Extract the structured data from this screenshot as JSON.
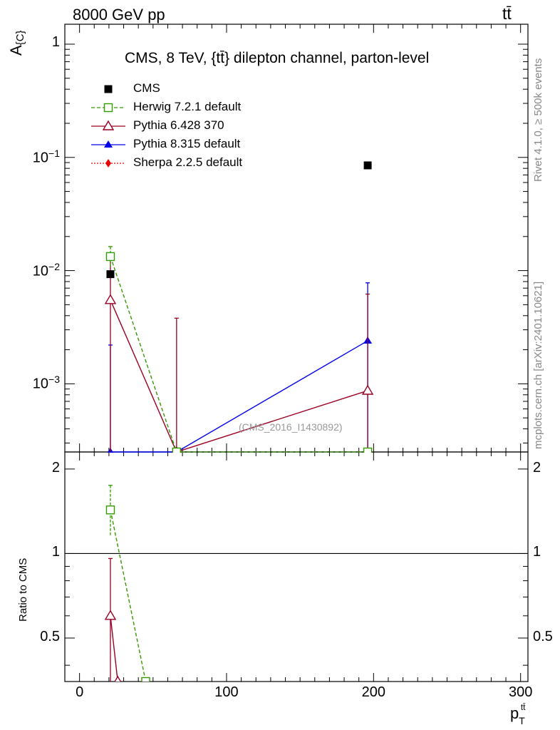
{
  "header": {
    "left": "8000 GeV pp",
    "right": "tt̄"
  },
  "side": {
    "rivet": "Rivet 4.1.0, ≥ 500k events",
    "mcplots": "mcplots.cern.ch [arXiv:2401.10621]"
  },
  "chart_data": {
    "type": "scatter",
    "title": "CMS, 8 TeV, {tt̄} dilepton channel, parton-level",
    "watermark": "(CMS_2016_I1430892)",
    "ylabel": "A_{C}",
    "xlabel": "p_T^{tt̄}",
    "xlim": [
      -10,
      305
    ],
    "ylim": [
      0.00025,
      1.5
    ],
    "yscale": "log",
    "xticks": [
      0,
      100,
      200,
      300
    ],
    "yticks": [
      {
        "value": 1,
        "label": "1"
      },
      {
        "value": 0.1,
        "label": "10^-1"
      },
      {
        "value": 0.01,
        "label": "10^-2"
      },
      {
        "value": 0.001,
        "label": "10^-3"
      }
    ],
    "legend_position": "top-left",
    "series": [
      {
        "name": "CMS",
        "color": "#000000",
        "marker": "square-filled",
        "line": "none",
        "points": [
          {
            "x": 21,
            "y": 0.0093
          },
          {
            "x": 66,
            "y": null
          },
          {
            "x": 196,
            "y": 0.085
          }
        ]
      },
      {
        "name": "Herwig 7.2.1 default",
        "color": "#339900",
        "marker": "square-open",
        "line": "dashed",
        "points": [
          {
            "x": 21,
            "y": 0.0133,
            "lo": 0.0108,
            "hi": 0.0163
          },
          {
            "x": 66,
            "y": 0.00025
          },
          {
            "x": 196,
            "y": 0.00025
          }
        ]
      },
      {
        "name": "Pythia 6.428 370",
        "color": "#990022",
        "marker": "triangle-open",
        "line": "solid",
        "points": [
          {
            "x": 21,
            "y": 0.0055,
            "lo": 0.00025,
            "hi": 0.0125
          },
          {
            "x": 66,
            "y": 0.00025,
            "hi": 0.0038
          },
          {
            "x": 196,
            "y": 0.00087,
            "lo": 0.00025,
            "hi": 0.0062
          }
        ]
      },
      {
        "name": "Pythia 8.315 default",
        "color": "#0000ee",
        "marker": "triangle-filled",
        "line": "solid",
        "points": [
          {
            "x": 21,
            "y": 0.00025,
            "hi": 0.0022
          },
          {
            "x": 66,
            "y": 0.00025
          },
          {
            "x": 196,
            "y": 0.0024,
            "lo": 0.00025,
            "hi": 0.0078
          }
        ]
      },
      {
        "name": "Sherpa 2.2.5 default",
        "color": "#ee0000",
        "marker": "diamond-filled",
        "line": "dotted",
        "points": []
      }
    ],
    "ratio": {
      "ylabel": "Ratio to CMS",
      "ylim": [
        0.35,
        2.3
      ],
      "yscale": "log",
      "yticks": [
        {
          "value": 2,
          "label": "2"
        },
        {
          "value": 1,
          "label": "1"
        },
        {
          "value": 0.5,
          "label": "0.5"
        }
      ],
      "reference": 1,
      "series": [
        {
          "name": "Herwig 7.2.1 default",
          "color": "#339900",
          "marker": "square-open",
          "line": "dashed",
          "points": [
            {
              "x": 21,
              "y": 1.43,
              "lo": 1.16,
              "hi": 1.75
            },
            {
              "x": 45,
              "y": 0.35
            }
          ]
        },
        {
          "name": "Pythia 6.428 370",
          "color": "#990022",
          "marker": "triangle-open",
          "line": "solid",
          "points": [
            {
              "x": 21,
              "y": 0.6,
              "lo": 0.35,
              "hi": 0.96
            },
            {
              "x": 26,
              "y": 0.35
            }
          ]
        }
      ]
    }
  }
}
